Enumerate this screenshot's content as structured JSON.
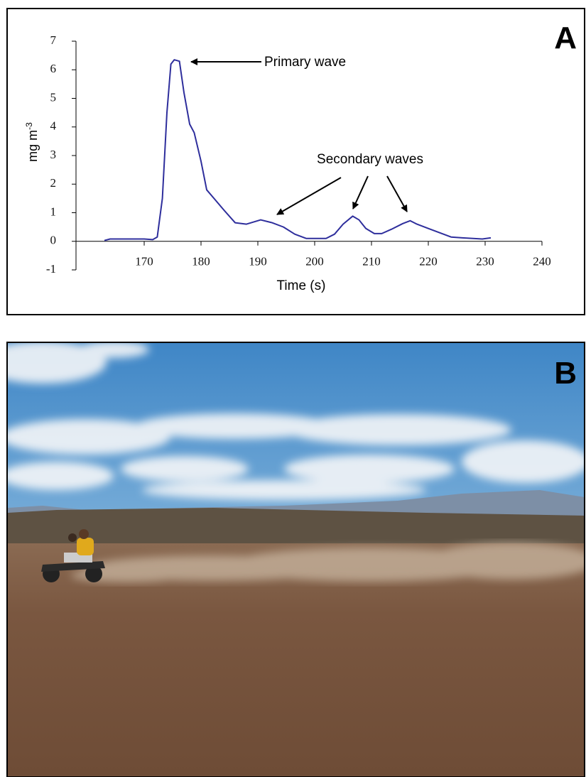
{
  "chart_data": {
    "type": "line",
    "panel_label": "A",
    "xlabel": "Time (s)",
    "ylabel": "mg m",
    "ylabel_exponent": "-3",
    "annotations": [
      "Primary wave",
      "Secondary waves"
    ],
    "x": [
      163,
      164,
      170,
      171.5,
      172.3,
      173.2,
      174,
      174.7,
      175.3,
      176.2,
      177,
      178,
      178.8,
      180,
      181,
      182.5,
      184,
      186,
      188,
      190.5,
      192.5,
      194.5,
      196.5,
      198.5,
      202,
      203.5,
      205,
      206.7,
      207.8,
      209,
      210.5,
      211.8,
      213.5,
      215.5,
      216.8,
      218,
      220,
      222,
      224,
      226,
      229.5,
      231
    ],
    "series": [
      {
        "color": "#2e2e9c",
        "values": [
          0.03,
          0.08,
          0.08,
          0.06,
          0.15,
          1.5,
          4.5,
          6.2,
          6.35,
          6.3,
          5.2,
          4.1,
          3.8,
          2.8,
          1.8,
          1.45,
          1.1,
          0.65,
          0.6,
          0.75,
          0.65,
          0.5,
          0.25,
          0.1,
          0.1,
          0.25,
          0.6,
          0.88,
          0.75,
          0.45,
          0.27,
          0.27,
          0.42,
          0.62,
          0.72,
          0.6,
          0.45,
          0.3,
          0.15,
          0.12,
          0.08,
          0.12
        ]
      }
    ],
    "xlim": [
      158,
      240
    ],
    "xticks": [
      170,
      180,
      190,
      200,
      210,
      220,
      230,
      240
    ],
    "ylim": [
      -1,
      7
    ],
    "yticks": [
      -1,
      0,
      1,
      2,
      3,
      4,
      5,
      6,
      7
    ]
  },
  "photo": {
    "panel_label": "B"
  }
}
